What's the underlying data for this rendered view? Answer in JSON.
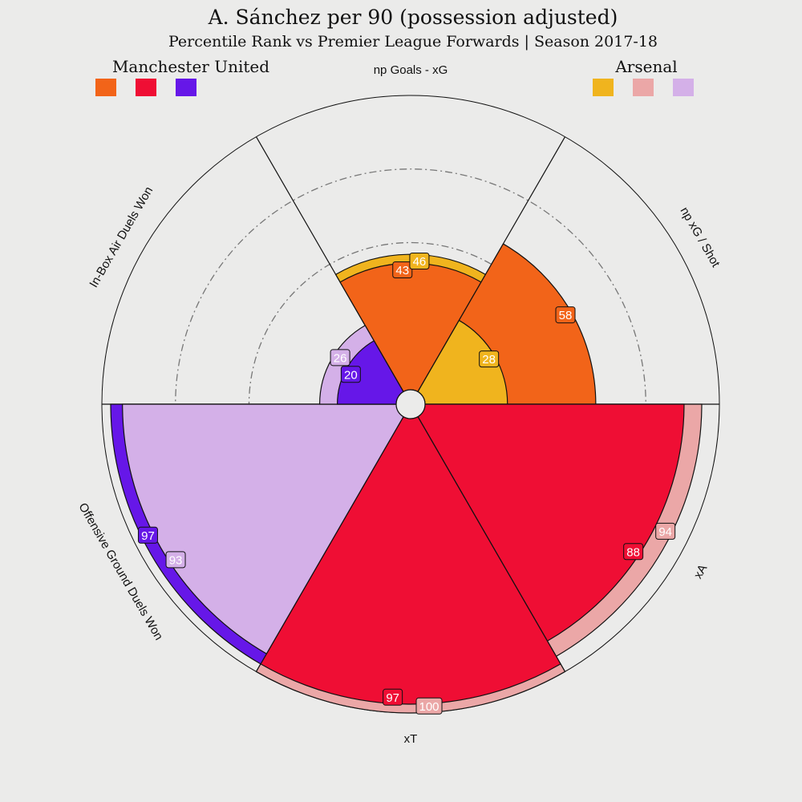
{
  "chart_data": {
    "type": "radar-pizza",
    "title": "A. Sánchez per 90 (possession adjusted)",
    "subtitle": "Percentile Rank vs Premier League Forwards | Season 2017-18",
    "rlim": [
      0,
      100
    ],
    "grid": true,
    "legend": [
      {
        "name": "Manchester United",
        "colors": [
          "#f26419",
          "#ef0e34",
          "#6617e8"
        ]
      },
      {
        "name": "Arsenal",
        "colors": [
          "#f0b41e",
          "#eba7a7",
          "#d4b0e8"
        ]
      }
    ],
    "params": [
      {
        "label": "np Goals - xG",
        "man_utd": 43,
        "arsenal": 46,
        "man_utd_color": "#f26419",
        "arsenal_color": "#f0b41e"
      },
      {
        "label": "np xG / Shot",
        "man_utd": 58,
        "arsenal": 28,
        "man_utd_color": "#f26419",
        "arsenal_color": "#f0b41e"
      },
      {
        "label": "xA",
        "man_utd": 88,
        "arsenal": 94,
        "man_utd_color": "#ef0e34",
        "arsenal_color": "#eba7a7"
      },
      {
        "label": "xT",
        "man_utd": 97,
        "arsenal": 100,
        "man_utd_color": "#ef0e34",
        "arsenal_color": "#eba7a7"
      },
      {
        "label": "Offensive Ground Duels Won",
        "man_utd": 97,
        "arsenal": 93,
        "man_utd_color": "#6617e8",
        "arsenal_color": "#d4b0e8"
      },
      {
        "label": "In-Box Air Duels Won",
        "man_utd": 20,
        "arsenal": 26,
        "man_utd_color": "#6617e8",
        "arsenal_color": "#d4b0e8"
      }
    ]
  }
}
